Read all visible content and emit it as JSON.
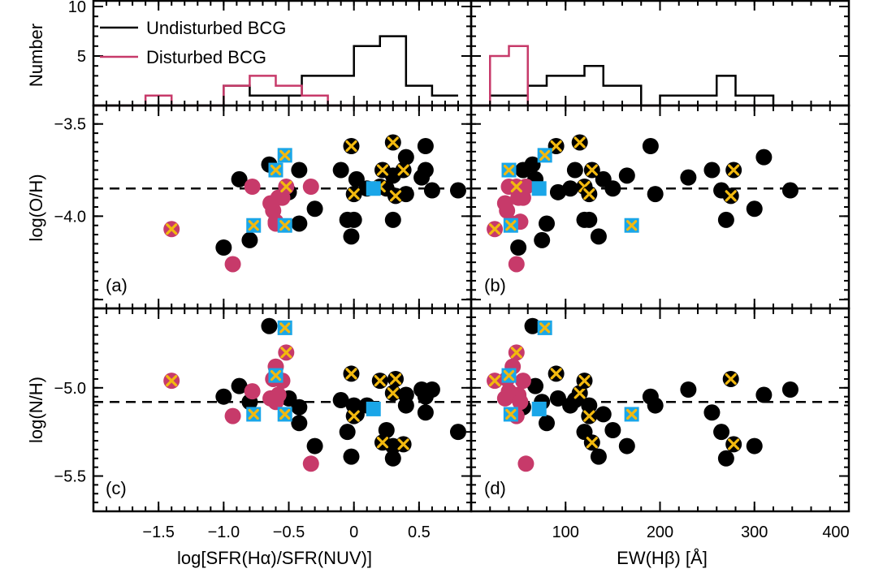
{
  "colors": {
    "undisturbed": "#000000",
    "disturbed": "#c73a6a",
    "special_marker": "#1aa6e8",
    "cross": "#f2b90f"
  },
  "chart_data": {
    "type": "scatter",
    "legend": {
      "placement": "top-left",
      "entries": [
        {
          "label": "Undisturbed BCG",
          "color": "#000000"
        },
        {
          "label": "Disturbed BCG",
          "color": "#c73a6a"
        }
      ]
    },
    "axes": {
      "xlabel_left": "log[SFR(Hα)/SFR(NUV)]",
      "xlabel_right": "EW(Hβ)  [Å]",
      "ylabel_top": "Number",
      "ylabel_mid": "log(O/H)",
      "ylabel_bot": "log(N/H)",
      "xlim_left": [
        -2.0,
        0.9
      ],
      "xlim_right": [
        0,
        400
      ],
      "ylim_top": [
        0,
        10
      ],
      "ylim_mid": [
        -4.5,
        -3.4
      ],
      "ylim_bot": [
        -5.7,
        -4.55
      ],
      "xticks_left": [
        {
          "v": -1.5,
          "label": "−1.5"
        },
        {
          "v": -1.0,
          "label": "−1.0"
        },
        {
          "v": -0.5,
          "label": "−0.5"
        },
        {
          "v": 0.0,
          "label": "0"
        },
        {
          "v": 0.5,
          "label": "0.5"
        }
      ],
      "xticks_right": [
        {
          "v": 100,
          "label": "100"
        },
        {
          "v": 200,
          "label": "200"
        },
        {
          "v": 300,
          "label": "300"
        },
        {
          "v": 400,
          "label": "400"
        }
      ],
      "yticks_top": [
        {
          "v": 5,
          "label": "5"
        },
        {
          "v": 10,
          "label": "10"
        }
      ],
      "yticks_mid": [
        {
          "v": -3.5,
          "label": "−3.5"
        },
        {
          "v": -4.0,
          "label": "−4.0"
        }
      ],
      "yticks_bot": [
        {
          "v": -5.0,
          "label": "−5.0"
        },
        {
          "v": -5.5,
          "label": "−5.5"
        }
      ],
      "dashed_level_oh": -3.85,
      "dashed_level_nh": -5.08
    },
    "panel_labels": {
      "a": "(a)",
      "b": "(b)",
      "c": "(c)",
      "d": "(d)"
    },
    "histograms": {
      "left_bin_edges": [
        -2.0,
        -1.8,
        -1.6,
        -1.4,
        -1.2,
        -1.0,
        -0.8,
        -0.6,
        -0.4,
        -0.2,
        0.0,
        0.2,
        0.4,
        0.6,
        0.8
      ],
      "left_undisturbed": [
        0,
        0,
        0,
        0,
        0,
        2,
        1,
        1,
        3,
        3,
        6,
        7,
        2,
        1
      ],
      "left_disturbed": [
        0,
        0,
        1,
        0,
        0,
        2,
        3,
        2,
        1,
        0,
        0,
        0,
        0,
        0
      ],
      "right_bin_edges": [
        0,
        20,
        40,
        60,
        80,
        100,
        120,
        140,
        160,
        180,
        200,
        220,
        240,
        260,
        280,
        300,
        320,
        340
      ],
      "right_undisturbed": [
        0,
        1,
        1,
        2,
        3,
        3,
        4,
        2,
        2,
        0,
        1,
        1,
        1,
        3,
        1,
        1,
        0
      ],
      "right_disturbed": [
        0,
        5,
        6,
        0,
        0,
        0,
        0,
        0,
        0,
        0,
        0,
        0,
        0,
        0,
        0,
        0,
        0
      ]
    },
    "points": [
      {
        "type": "undisturbed",
        "ratio": -1.0,
        "ew": 50,
        "oh": -4.17,
        "nh": -5.05
      },
      {
        "type": "undisturbed",
        "ratio": -0.8,
        "ew": 75,
        "oh": -4.13,
        "nh": -5.08
      },
      {
        "type": "undisturbed",
        "ratio": -0.65,
        "ew": 65,
        "oh": -3.72,
        "nh": -4.65
      },
      {
        "type": "undisturbed",
        "ratio": -0.42,
        "ew": 80,
        "oh": -4.04,
        "nh": -5.2
      },
      {
        "type": "undisturbed",
        "ratio": -0.42,
        "ew": 55,
        "oh": -3.75,
        "nh": -5.11
      },
      {
        "type": "undisturbed",
        "ratio": -0.88,
        "ew": 68,
        "oh": -3.8,
        "nh": -4.99
      },
      {
        "type": "undisturbed",
        "ratio": -0.1,
        "ew": 110,
        "oh": -3.75,
        "nh": -5.07
      },
      {
        "type": "undisturbed",
        "ratio": -0.05,
        "ew": 120,
        "oh": -4.02,
        "nh": -5.25
      },
      {
        "type": "undisturbed",
        "ratio": 0.0,
        "ew": 125,
        "oh": -4.02,
        "nh": -5.1
      },
      {
        "type": "undisturbed",
        "ratio": -0.02,
        "ew": 135,
        "oh": -4.11,
        "nh": -5.39
      },
      {
        "type": "undisturbed",
        "ratio": 0.02,
        "ew": 140,
        "oh": -3.8,
        "nh": -5.15
      },
      {
        "type": "undisturbed",
        "ratio": 0.1,
        "ew": 105,
        "oh": -3.85,
        "nh": -5.1
      },
      {
        "type": "undisturbed",
        "ratio": 0.25,
        "ew": 150,
        "oh": -3.85,
        "nh": -5.24
      },
      {
        "type": "undisturbed",
        "ratio": 0.3,
        "ew": 165,
        "oh": -3.78,
        "nh": -5.33
      },
      {
        "type": "undisturbed",
        "ratio": 0.4,
        "ew": 195,
        "oh": -3.88,
        "nh": -5.1
      },
      {
        "type": "undisturbed",
        "ratio": 0.55,
        "ew": 190,
        "oh": -3.62,
        "nh": -5.05
      },
      {
        "type": "undisturbed",
        "ratio": 0.52,
        "ew": 230,
        "oh": -3.79,
        "nh": -5.01
      },
      {
        "type": "undisturbed",
        "ratio": 0.55,
        "ew": 255,
        "oh": -3.75,
        "nh": -5.14
      },
      {
        "type": "undisturbed",
        "ratio": 0.8,
        "ew": 265,
        "oh": -3.86,
        "nh": -5.25
      },
      {
        "type": "undisturbed",
        "ratio": 0.3,
        "ew": 270,
        "oh": -4.02,
        "nh": -5.4
      },
      {
        "type": "undisturbed",
        "ratio": -0.3,
        "ew": 300,
        "oh": -3.96,
        "nh": -5.33
      },
      {
        "type": "undisturbed",
        "ratio": 0.4,
        "ew": 310,
        "oh": -3.68,
        "nh": -5.04
      },
      {
        "type": "undisturbed",
        "ratio": 0.6,
        "ew": 338,
        "oh": -3.86,
        "nh": -5.01
      },
      {
        "type": "undisturbed",
        "ratio": -0.5,
        "ew": 92,
        "oh": -3.87,
        "nh": -5.06
      },
      {
        "type": "disturbed",
        "ratio": -0.93,
        "ew": 48,
        "oh": -4.26,
        "nh": -5.16
      },
      {
        "type": "disturbed",
        "ratio": -0.78,
        "ew": 40,
        "oh": -3.84,
        "nh": -5.02
      },
      {
        "type": "disturbed",
        "ratio": -0.64,
        "ew": 36,
        "oh": -3.93,
        "nh": -5.06
      },
      {
        "type": "disturbed",
        "ratio": -0.62,
        "ew": 38,
        "oh": -3.97,
        "nh": -4.95
      },
      {
        "type": "disturbed",
        "ratio": -0.6,
        "ew": 44,
        "oh": -4.04,
        "nh": -4.88
      },
      {
        "type": "disturbed",
        "ratio": -0.58,
        "ew": 50,
        "oh": -3.9,
        "nh": -5.04
      },
      {
        "type": "disturbed",
        "ratio": -0.55,
        "ew": 55,
        "oh": -3.9,
        "nh": -4.96
      },
      {
        "type": "disturbed",
        "ratio": -0.33,
        "ew": 58,
        "oh": -3.84,
        "nh": -5.43
      },
      {
        "type": "disturbed",
        "ratio": -0.6,
        "ew": 52,
        "oh": -4.03,
        "nh": -5.08
      },
      {
        "type": "disturbed_x",
        "ratio": -1.4,
        "ew": 25,
        "oh": -4.07,
        "nh": -4.96
      },
      {
        "type": "disturbed_x",
        "ratio": -0.52,
        "ew": 48,
        "oh": -3.84,
        "nh": -4.8
      },
      {
        "type": "undisturbed_x",
        "ratio": -0.02,
        "ew": 90,
        "oh": -3.62,
        "nh": -4.92
      },
      {
        "type": "undisturbed_x",
        "ratio": 0.3,
        "ew": 115,
        "oh": -3.6,
        "nh": -5.03
      },
      {
        "type": "undisturbed_x",
        "ratio": 0.2,
        "ew": 120,
        "oh": -3.84,
        "nh": -4.96
      },
      {
        "type": "undisturbed_x",
        "ratio": 0.0,
        "ew": 125,
        "oh": -3.88,
        "nh": -5.16
      },
      {
        "type": "undisturbed_x",
        "ratio": 0.38,
        "ew": 278,
        "oh": -3.75,
        "nh": -5.32
      },
      {
        "type": "undisturbed_x",
        "ratio": 0.22,
        "ew": 128,
        "oh": -3.75,
        "nh": -5.31
      },
      {
        "type": "undisturbed_x",
        "ratio": 0.32,
        "ew": 275,
        "oh": -3.89,
        "nh": -4.95
      },
      {
        "type": "special_x",
        "ratio": -0.53,
        "ew": 78,
        "oh": -3.67,
        "nh": -4.66
      },
      {
        "type": "special_x",
        "ratio": -0.6,
        "ew": 40,
        "oh": -3.75,
        "nh": -4.93
      },
      {
        "type": "special_x",
        "ratio": -0.77,
        "ew": 42,
        "oh": -4.05,
        "nh": -5.15
      },
      {
        "type": "special_x",
        "ratio": -0.53,
        "ew": 170,
        "oh": -4.05,
        "nh": -5.15
      },
      {
        "type": "special",
        "ratio": 0.15,
        "ew": 72,
        "oh": -3.85,
        "nh": -5.12
      }
    ]
  }
}
